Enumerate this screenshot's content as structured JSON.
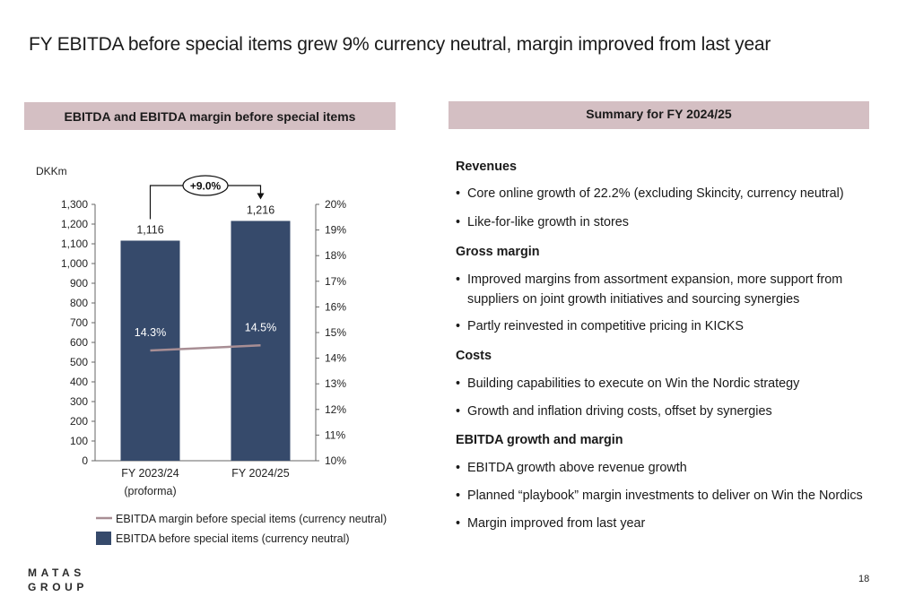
{
  "title": "FY EBITDA before special items grew 9% currency neutral, margin improved from last year",
  "left_header": "EBITDA and EBITDA margin before special items",
  "right_header": "Summary for FY 2024/25",
  "chart_data": {
    "type": "bar",
    "unit_label": "DKKm",
    "categories": [
      [
        "FY 2023/24",
        "(proforma)"
      ],
      [
        "FY 2024/25"
      ]
    ],
    "series": [
      {
        "name": "EBITDA before special items (currency neutral)",
        "type": "bar",
        "axis": "left",
        "values": [
          1116,
          1216
        ],
        "labels": [
          "1,116",
          "1,216"
        ],
        "color": "#364a6b"
      },
      {
        "name": "EBITDA margin before special items (currency neutral)",
        "type": "line",
        "axis": "right",
        "values": [
          14.3,
          14.5
        ],
        "labels": [
          "14.3%",
          "14.5%"
        ],
        "color": "#a88e94"
      }
    ],
    "y_left": {
      "range": [
        0,
        1300
      ],
      "ticks": [
        0,
        100,
        200,
        300,
        400,
        500,
        600,
        700,
        800,
        900,
        1000,
        1100,
        1200,
        1300
      ],
      "tick_labels": [
        "0",
        "100",
        "200",
        "300",
        "400",
        "500",
        "600",
        "700",
        "800",
        "900",
        "1,000",
        "1,100",
        "1,200",
        "1,300"
      ]
    },
    "y_right": {
      "range": [
        10,
        20
      ],
      "ticks": [
        10,
        11,
        12,
        13,
        14,
        15,
        16,
        17,
        18,
        19,
        20
      ],
      "tick_labels": [
        "10%",
        "11%",
        "12%",
        "13%",
        "14%",
        "15%",
        "16%",
        "17%",
        "18%",
        "19%",
        "20%"
      ]
    },
    "growth_annotation": "+9.0%",
    "legend_position": "bottom",
    "grid": false
  },
  "summary": {
    "sections": [
      {
        "heading": "Revenues",
        "bullets": [
          [
            "Core online growth of 22.2% (excluding Skincity, currency neutral)"
          ],
          [
            "Like-for-like growth in stores"
          ]
        ]
      },
      {
        "heading": "Gross margin",
        "bullets": [
          [
            "Improved margins from assortment expansion, more support from",
            "suppliers on joint growth initiatives and sourcing synergies"
          ],
          [
            "Partly reinvested in competitive pricing in KICKS"
          ]
        ]
      },
      {
        "heading": "Costs",
        "bullets": [
          [
            "Building capabilities to execute on Win the Nordic strategy"
          ],
          [
            "Growth and inflation driving costs, offset by synergies"
          ]
        ]
      },
      {
        "heading": "EBITDA growth and margin",
        "bullets": [
          [
            "EBITDA growth above revenue growth"
          ],
          [
            "Planned “playbook” margin investments to deliver on Win the Nordics"
          ],
          [
            "Margin improved from last year"
          ]
        ]
      }
    ]
  },
  "bullet_char": "•",
  "logo": {
    "line1": "MATAS",
    "line2": "GROUP"
  },
  "page_number": "18"
}
